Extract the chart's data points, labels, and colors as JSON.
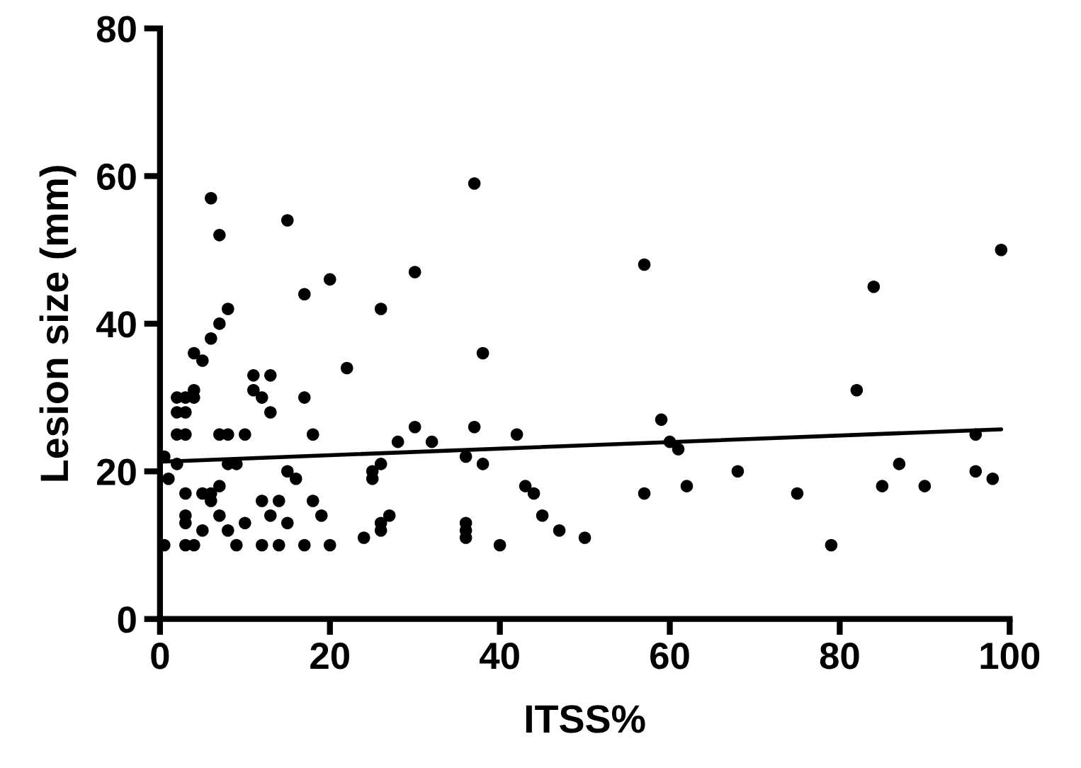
{
  "chart_data": {
    "type": "scatter",
    "xlabel": "ITSS%",
    "ylabel": "Lesion size (mm)",
    "xlim": [
      0,
      100
    ],
    "ylim": [
      0,
      80
    ],
    "xticks": [
      0,
      20,
      40,
      60,
      80,
      100
    ],
    "yticks": [
      0,
      20,
      40,
      60,
      80
    ],
    "grid": false,
    "legend": false,
    "marker": "circle",
    "series": [
      {
        "color": "#000000",
        "x": [
          0.5,
          1,
          0.5,
          2,
          2,
          2,
          2,
          3,
          3,
          3,
          3,
          4,
          3,
          3,
          3,
          4,
          4,
          4,
          5,
          5,
          5,
          6,
          6,
          6,
          6,
          7,
          7,
          7,
          7,
          7,
          8,
          8,
          8,
          8,
          9,
          9,
          10,
          10,
          11,
          11,
          12,
          12,
          12,
          13,
          13,
          13,
          14,
          14,
          15,
          15,
          15,
          16,
          17,
          17,
          17,
          18,
          18,
          19,
          20,
          20,
          22,
          24,
          25,
          25,
          26,
          26,
          26,
          26,
          27,
          28,
          30,
          30,
          32,
          36,
          36,
          36,
          36,
          37,
          37,
          38,
          38,
          40,
          42,
          43,
          44,
          45,
          47,
          50,
          57,
          57,
          59,
          60,
          61,
          62,
          68,
          75,
          79,
          82,
          84,
          85,
          87,
          90,
          96,
          96,
          98,
          99
        ],
        "values": [
          22,
          19,
          10,
          21,
          25,
          28,
          30,
          25,
          28,
          30,
          10,
          10,
          17,
          13,
          14,
          36,
          31,
          30,
          35,
          17,
          12,
          16,
          17,
          38,
          57,
          52,
          40,
          14,
          25,
          18,
          42,
          25,
          21,
          12,
          10,
          21,
          13,
          25,
          31,
          33,
          30,
          16,
          10,
          33,
          14,
          28,
          10,
          16,
          54,
          20,
          13,
          19,
          10,
          30,
          44,
          16,
          25,
          14,
          10,
          46,
          34,
          11,
          19,
          20,
          12,
          13,
          21,
          42,
          14,
          24,
          26,
          47,
          24,
          22,
          13,
          12,
          11,
          26,
          59,
          21,
          36,
          10,
          25,
          18,
          17,
          14,
          12,
          11,
          48,
          17,
          27,
          24,
          23,
          18,
          20,
          17,
          10,
          31,
          45,
          18,
          21,
          18,
          25,
          20,
          19,
          50
        ]
      },
      {
        "type": "line",
        "color": "#000000",
        "x": [
          0,
          99
        ],
        "values": [
          21.3,
          25.7
        ],
        "marker": "none",
        "line_style": "solid"
      }
    ]
  }
}
